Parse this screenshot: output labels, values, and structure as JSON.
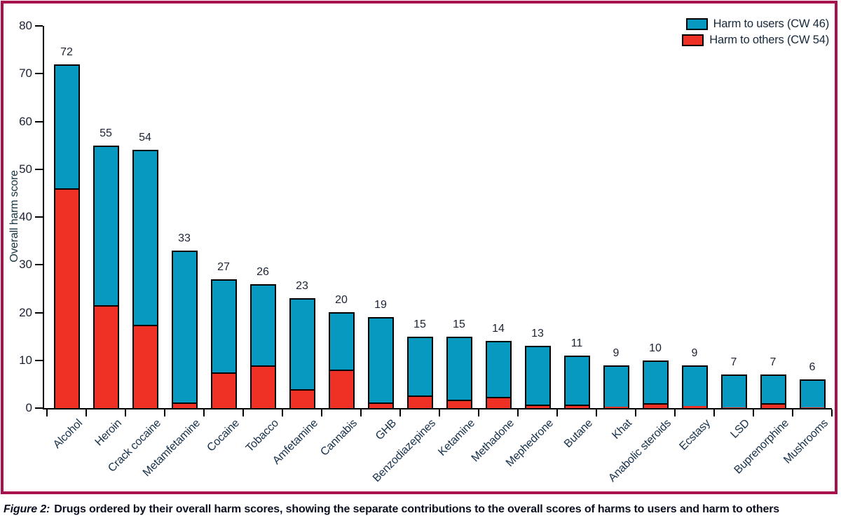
{
  "page": {
    "caption_label": "Figure 2:",
    "caption_text": "Drugs ordered by their overall harm scores, showing the separate contributions to the overall scores of harms to users and harm to others"
  },
  "colors": {
    "harm_to_users_blue": "#0899c0",
    "harm_to_others_red": "#ee3124",
    "frame_border_crimson": "#a8124c",
    "axis_black": "#000000",
    "text_dark": "#1b2233"
  },
  "chart_data": {
    "type": "bar",
    "stacked": true,
    "title": "",
    "xlabel": "",
    "ylabel": "Overall harm score",
    "ylim": [
      0,
      80
    ],
    "yticks": [
      0,
      10,
      20,
      30,
      40,
      50,
      60,
      70,
      80
    ],
    "grid": false,
    "legend_position": "top-right-inside",
    "categories": [
      "Alcohol",
      "Heroin",
      "Crack cocaine",
      "Metamfetamine",
      "Cocaine",
      "Tobacco",
      "Amfetamine",
      "Cannabis",
      "GHB",
      "Benzodiazepines",
      "Ketamine",
      "Methadone",
      "Mephedrone",
      "Butane",
      "Khat",
      "Anabolic steroids",
      "Ecstasy",
      "LSD",
      "Buprenorphine",
      "Mushrooms"
    ],
    "totals": [
      72,
      55,
      54,
      33,
      27,
      26,
      23,
      20,
      19,
      15,
      15,
      14,
      13,
      11,
      9,
      10,
      9,
      7,
      7,
      6
    ],
    "bar_value_labels": [
      "72",
      "55",
      "54",
      "33",
      "27",
      "26",
      "23",
      "20",
      "19",
      "15",
      "15",
      "14",
      "13",
      "11",
      "9",
      "10",
      "9",
      "7",
      "7",
      "6"
    ],
    "series": [
      {
        "name": "Harm to users (CW 46)",
        "color": "#0899c0",
        "values": [
          26,
          33.5,
          36.5,
          31.8,
          19.5,
          17,
          19,
          12,
          17.8,
          12.3,
          13.3,
          11.6,
          12.2,
          10.2,
          8.7,
          9,
          8.5,
          6.8,
          6,
          5.8
        ]
      },
      {
        "name": "Harm to others (CW 54)",
        "color": "#ee3124",
        "values": [
          46,
          21.5,
          17.5,
          1.2,
          7.5,
          9,
          4,
          8,
          1.2,
          2.7,
          1.7,
          2.4,
          0.8,
          0.8,
          0.3,
          1.0,
          0.5,
          0.2,
          1.0,
          0.2
        ]
      }
    ]
  }
}
